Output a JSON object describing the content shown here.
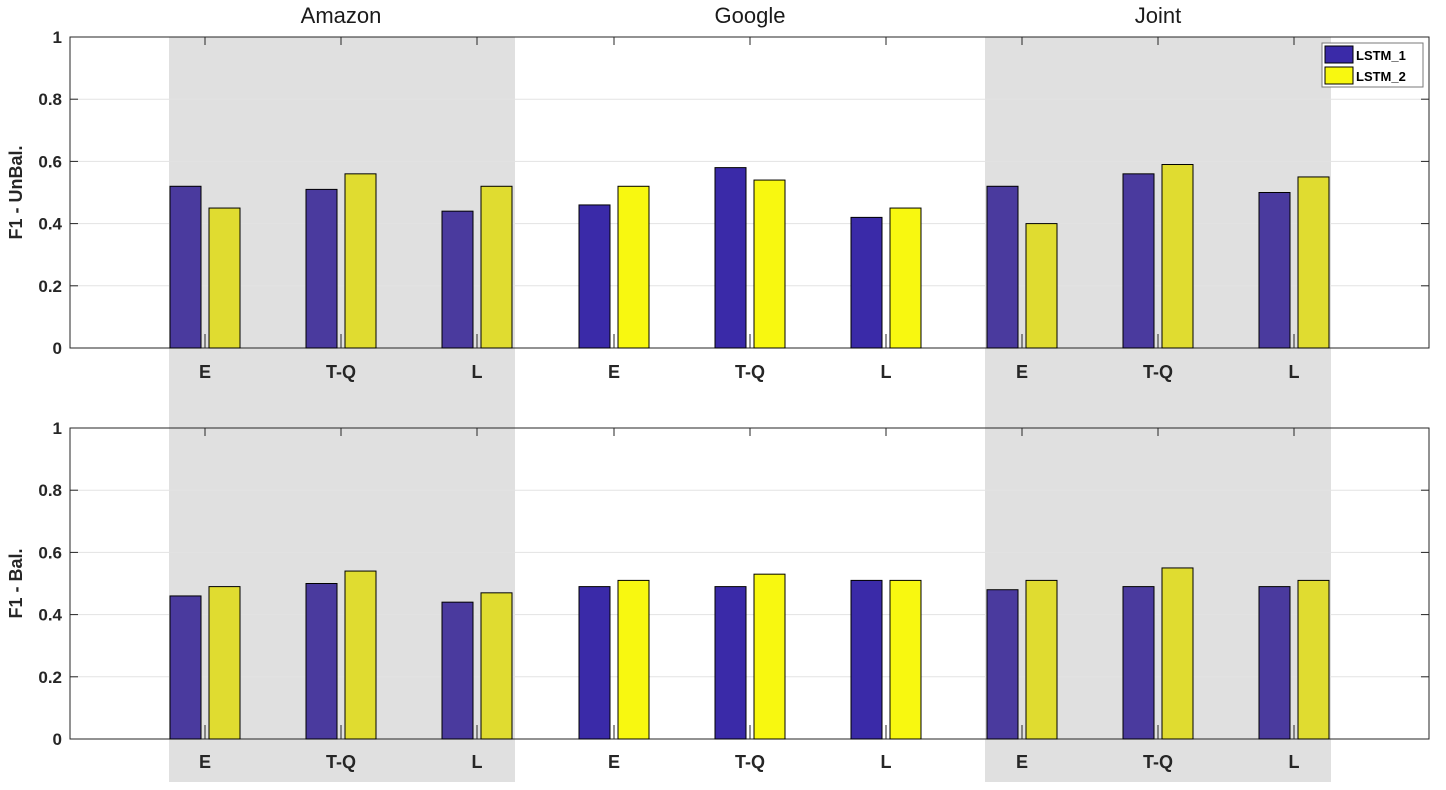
{
  "groups": [
    "Amazon",
    "Google",
    "Joint"
  ],
  "legend": [
    "LSTM_1",
    "LSTM_2"
  ],
  "colors": {
    "lstm1": "#3a2aa8",
    "lstm1_shaded": "#4a3a9e",
    "lstm2": "#f8f810",
    "lstm2_shaded": "#e0dc30",
    "shade": "#e0e0e0",
    "grid": "#e3e3e3"
  },
  "chart_data": [
    {
      "type": "bar",
      "ylabel": "F1 - UnBal.",
      "ylim": [
        0,
        1
      ],
      "yticks": [
        "0",
        "0.2",
        "0.4",
        "0.6",
        "0.8",
        "1"
      ],
      "categories": [
        "E",
        "T-Q",
        "L",
        "E",
        "T-Q",
        "L",
        "E",
        "T-Q",
        "L"
      ],
      "groups": [
        "Amazon",
        "Google",
        "Joint"
      ],
      "series": [
        {
          "name": "LSTM_1",
          "values": [
            0.52,
            0.51,
            0.44,
            0.46,
            0.58,
            0.42,
            0.52,
            0.56,
            0.5
          ]
        },
        {
          "name": "LSTM_2",
          "values": [
            0.45,
            0.56,
            0.52,
            0.52,
            0.54,
            0.45,
            0.4,
            0.59,
            0.55
          ]
        }
      ],
      "grid": true,
      "legend_position": "top-right"
    },
    {
      "type": "bar",
      "ylabel": "F1 - Bal.",
      "ylim": [
        0,
        1
      ],
      "yticks": [
        "0",
        "0.2",
        "0.4",
        "0.6",
        "0.8",
        "1"
      ],
      "categories": [
        "E",
        "T-Q",
        "L",
        "E",
        "T-Q",
        "L",
        "E",
        "T-Q",
        "L"
      ],
      "groups": [
        "Amazon",
        "Google",
        "Joint"
      ],
      "series": [
        {
          "name": "LSTM_1",
          "values": [
            0.46,
            0.5,
            0.44,
            0.49,
            0.49,
            0.51,
            0.48,
            0.49,
            0.49
          ]
        },
        {
          "name": "LSTM_2",
          "values": [
            0.49,
            0.54,
            0.47,
            0.51,
            0.53,
            0.51,
            0.51,
            0.55,
            0.51
          ]
        }
      ],
      "grid": true
    }
  ]
}
